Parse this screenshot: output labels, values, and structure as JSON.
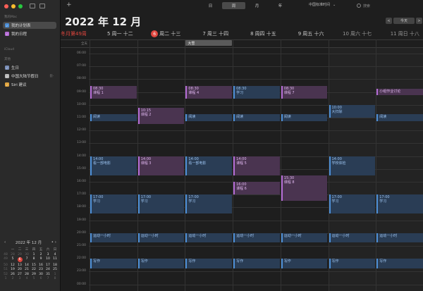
{
  "sidebar": {
    "section_mac": "我的Mac",
    "cal_items": [
      {
        "label": "我的计划表",
        "color": "#4d8fd6",
        "selected": true
      },
      {
        "label": "我的日程",
        "color": "#b56cd6",
        "selected": false
      }
    ],
    "section_icloud": "iCloud",
    "section_other": "其他",
    "other_items": [
      {
        "label": "生日",
        "color": "#7a8fb8"
      },
      {
        "label": "中国大陆节假日",
        "color": "#bbbbbb",
        "extra": "((·"
      },
      {
        "label": "Siri 建议",
        "color": "#e0a43e"
      }
    ]
  },
  "toolbar": {
    "plus": "+",
    "views": [
      {
        "label": "日",
        "on": false
      },
      {
        "label": "周",
        "on": true
      },
      {
        "label": "月",
        "on": false
      },
      {
        "label": "年",
        "on": false
      }
    ],
    "timezone": "中国标准时间",
    "timezone_chevron": "⌄",
    "search_placeholder": "搜索"
  },
  "title": "2022 年 12 月",
  "nav": {
    "prev": "<",
    "today": "今天",
    "next": ">"
  },
  "week_info": "冬月第49周",
  "days": [
    {
      "num": "5",
      "label": "周一",
      "lunar": "十二",
      "today": false,
      "weekend": false
    },
    {
      "num": "6",
      "label": "周二",
      "lunar": "十三",
      "today": true,
      "weekend": false
    },
    {
      "num": "7",
      "label": "周三",
      "lunar": "十四",
      "today": false,
      "weekend": false
    },
    {
      "num": "8",
      "label": "周四",
      "lunar": "十五",
      "today": false,
      "weekend": false
    },
    {
      "num": "9",
      "label": "周五",
      "lunar": "十六",
      "today": false,
      "weekend": false
    },
    {
      "num": "10",
      "label": "周六",
      "lunar": "十七",
      "today": false,
      "weekend": true
    },
    {
      "num": "11",
      "label": "周日",
      "lunar": "十八",
      "today": false,
      "weekend": true
    }
  ],
  "allday_label": "全天",
  "allday_events": [
    {
      "day": 2,
      "label": "大雪"
    }
  ],
  "hours": [
    "06:00",
    "07:00",
    "08:00",
    "09:00",
    "10:00",
    "11:00",
    "12:00",
    "13:00",
    "14:00",
    "15:00",
    "16:00",
    "17:00",
    "18:00",
    "19:00",
    "20:00",
    "21:00",
    "22:00",
    "23:00",
    "00:00"
  ],
  "events": [
    {
      "day": 0,
      "start": 8.5,
      "end": 9.5,
      "time": "08:30",
      "title": "课程 1",
      "color": "purple"
    },
    {
      "day": 2,
      "start": 8.5,
      "end": 9.5,
      "time": "08:30",
      "title": "课程 4",
      "color": "purple"
    },
    {
      "day": 3,
      "start": 8.5,
      "end": 9.5,
      "time": "08:30",
      "title": "学习",
      "color": "blue"
    },
    {
      "day": 4,
      "start": 8.5,
      "end": 9.5,
      "time": "08:30",
      "title": "课程 7",
      "color": "purple"
    },
    {
      "day": 6,
      "start": 8.75,
      "end": 9.25,
      "time": "",
      "title": "小组作业讨论",
      "color": "purple"
    },
    {
      "day": 1,
      "start": 10.25,
      "end": 11.5,
      "time": "10:15",
      "title": "课程 2",
      "color": "purple"
    },
    {
      "day": 5,
      "start": 10.0,
      "end": 11.0,
      "time": "10:00",
      "title": "大扫除",
      "color": "blue"
    },
    {
      "day": 0,
      "start": 10.75,
      "end": 11.25,
      "time": "",
      "title": "阅读",
      "color": "blue"
    },
    {
      "day": 2,
      "start": 10.75,
      "end": 11.25,
      "time": "",
      "title": "阅读",
      "color": "blue"
    },
    {
      "day": 3,
      "start": 10.75,
      "end": 11.25,
      "time": "",
      "title": "阅读",
      "color": "blue"
    },
    {
      "day": 4,
      "start": 10.75,
      "end": 11.25,
      "time": "",
      "title": "阅读",
      "color": "blue"
    },
    {
      "day": 6,
      "start": 10.75,
      "end": 11.25,
      "time": "",
      "title": "阅读",
      "color": "blue"
    },
    {
      "day": 0,
      "start": 14.0,
      "end": 15.5,
      "time": "14:00",
      "title": "看一部电影",
      "color": "blue"
    },
    {
      "day": 1,
      "start": 14.0,
      "end": 15.5,
      "time": "14:00",
      "title": "课程 3",
      "color": "purple"
    },
    {
      "day": 2,
      "start": 14.0,
      "end": 15.5,
      "time": "14:00",
      "title": "看一部电影",
      "color": "blue"
    },
    {
      "day": 3,
      "start": 14.0,
      "end": 15.5,
      "time": "14:00",
      "title": "课程 5",
      "color": "purple"
    },
    {
      "day": 5,
      "start": 14.0,
      "end": 15.5,
      "time": "14:00",
      "title": "学校体检",
      "color": "blue"
    },
    {
      "day": 4,
      "start": 15.5,
      "end": 17.5,
      "time": "15:30",
      "title": "课程 8",
      "color": "purple"
    },
    {
      "day": 3,
      "start": 16.0,
      "end": 17.0,
      "time": "16:00",
      "title": "课程 6",
      "color": "purple"
    },
    {
      "day": 0,
      "start": 17.0,
      "end": 18.5,
      "time": "17:00",
      "title": "学习",
      "color": "blue"
    },
    {
      "day": 1,
      "start": 17.0,
      "end": 18.5,
      "time": "17:00",
      "title": "学习",
      "color": "blue"
    },
    {
      "day": 2,
      "start": 17.0,
      "end": 18.5,
      "time": "17:00",
      "title": "学习",
      "color": "blue"
    },
    {
      "day": 5,
      "start": 17.0,
      "end": 18.5,
      "time": "17:00",
      "title": "学习",
      "color": "blue"
    },
    {
      "day": 6,
      "start": 17.0,
      "end": 18.5,
      "time": "17:00",
      "title": "学习",
      "color": "blue"
    },
    {
      "day": 0,
      "start": 20.0,
      "end": 20.75,
      "time": "",
      "title": "运动一小时",
      "color": "blue"
    },
    {
      "day": 1,
      "start": 20.0,
      "end": 20.75,
      "time": "",
      "title": "运动一小时",
      "color": "blue"
    },
    {
      "day": 2,
      "start": 20.0,
      "end": 20.75,
      "time": "",
      "title": "运动一小时",
      "color": "blue"
    },
    {
      "day": 3,
      "start": 20.0,
      "end": 20.75,
      "time": "",
      "title": "运动一小时",
      "color": "blue"
    },
    {
      "day": 4,
      "start": 20.0,
      "end": 20.75,
      "time": "",
      "title": "运动一小时",
      "color": "blue"
    },
    {
      "day": 5,
      "start": 20.0,
      "end": 20.75,
      "time": "",
      "title": "运动一小时",
      "color": "blue"
    },
    {
      "day": 6,
      "start": 20.0,
      "end": 20.75,
      "time": "",
      "title": "运动一小时",
      "color": "blue"
    },
    {
      "day": 0,
      "start": 22.0,
      "end": 22.75,
      "time": "",
      "title": "写作",
      "color": "blue"
    },
    {
      "day": 1,
      "start": 22.0,
      "end": 22.75,
      "time": "",
      "title": "写作",
      "color": "blue"
    },
    {
      "day": 2,
      "start": 22.0,
      "end": 22.75,
      "time": "",
      "title": "写作",
      "color": "blue"
    },
    {
      "day": 3,
      "start": 22.0,
      "end": 22.75,
      "time": "",
      "title": "写作",
      "color": "blue"
    },
    {
      "day": 4,
      "start": 22.0,
      "end": 22.75,
      "time": "",
      "title": "写作",
      "color": "blue"
    },
    {
      "day": 5,
      "start": 22.0,
      "end": 22.75,
      "time": "",
      "title": "写作",
      "color": "blue"
    },
    {
      "day": 6,
      "start": 22.0,
      "end": 22.75,
      "time": "",
      "title": "写作",
      "color": "blue"
    }
  ],
  "mini_calendar": {
    "title": "2022 年 12 月",
    "prev": "‹",
    "dot": "•",
    "next": "›",
    "headers": [
      "",
      "一",
      "二",
      "三",
      "四",
      "五",
      "六",
      "日"
    ],
    "rows": [
      {
        "wk": "48",
        "days": [
          "28",
          "29",
          "30",
          "1",
          "2",
          "3",
          "4"
        ],
        "dim": [
          true,
          true,
          true,
          false,
          false,
          false,
          false
        ]
      },
      {
        "wk": "49",
        "days": [
          "5",
          "6",
          "7",
          "8",
          "9",
          "10",
          "11"
        ],
        "dim": [
          false,
          false,
          false,
          false,
          false,
          false,
          false
        ]
      },
      {
        "wk": "50",
        "days": [
          "12",
          "13",
          "14",
          "15",
          "16",
          "17",
          "18"
        ],
        "dim": [
          false,
          false,
          false,
          false,
          false,
          false,
          false
        ]
      },
      {
        "wk": "51",
        "days": [
          "19",
          "20",
          "21",
          "22",
          "23",
          "24",
          "25"
        ],
        "dim": [
          false,
          false,
          false,
          false,
          false,
          false,
          false
        ]
      },
      {
        "wk": "52",
        "days": [
          "26",
          "27",
          "28",
          "29",
          "30",
          "31",
          "1"
        ],
        "dim": [
          false,
          false,
          false,
          false,
          false,
          false,
          true
        ]
      },
      {
        "wk": "1",
        "days": [
          "2",
          "3",
          "4",
          "5",
          "6",
          "7",
          "8"
        ],
        "dim": [
          true,
          true,
          true,
          true,
          true,
          true,
          true
        ]
      }
    ],
    "today": "6"
  }
}
